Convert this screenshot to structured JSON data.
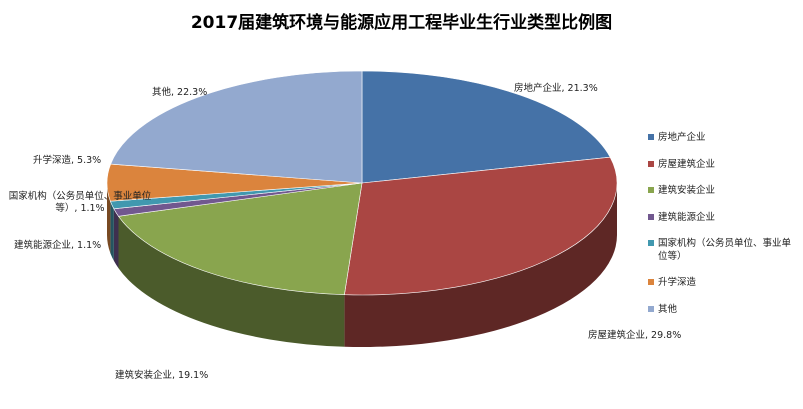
{
  "chart_data": {
    "type": "pie3d",
    "title": "2017届建筑环境与能源应用工程毕业生行业类型比例图",
    "categories": [
      "房地产企业",
      "房屋建筑企业",
      "建筑安装企业",
      "建筑能源企业",
      "国家机构（公务员单位、事业单位等）",
      "升学深造",
      "其他"
    ],
    "values": [
      21.3,
      29.8,
      19.1,
      1.1,
      1.1,
      5.3,
      22.3
    ],
    "value_labels": [
      "房地产企业, 21.3%",
      "房屋建筑企业, 29.8%",
      "建筑安装企业, 19.1%",
      "建筑能源企业, 1.1%",
      "国家机构（公务员单位、事业单位等）, 1.1%",
      "升学深造, 5.3%",
      "其他, 22.3%"
    ],
    "colors": [
      "#4572a7",
      "#aa4643",
      "#89a54e",
      "#71588f",
      "#4198af",
      "#db843d",
      "#93a9cf"
    ],
    "legend": "right"
  }
}
